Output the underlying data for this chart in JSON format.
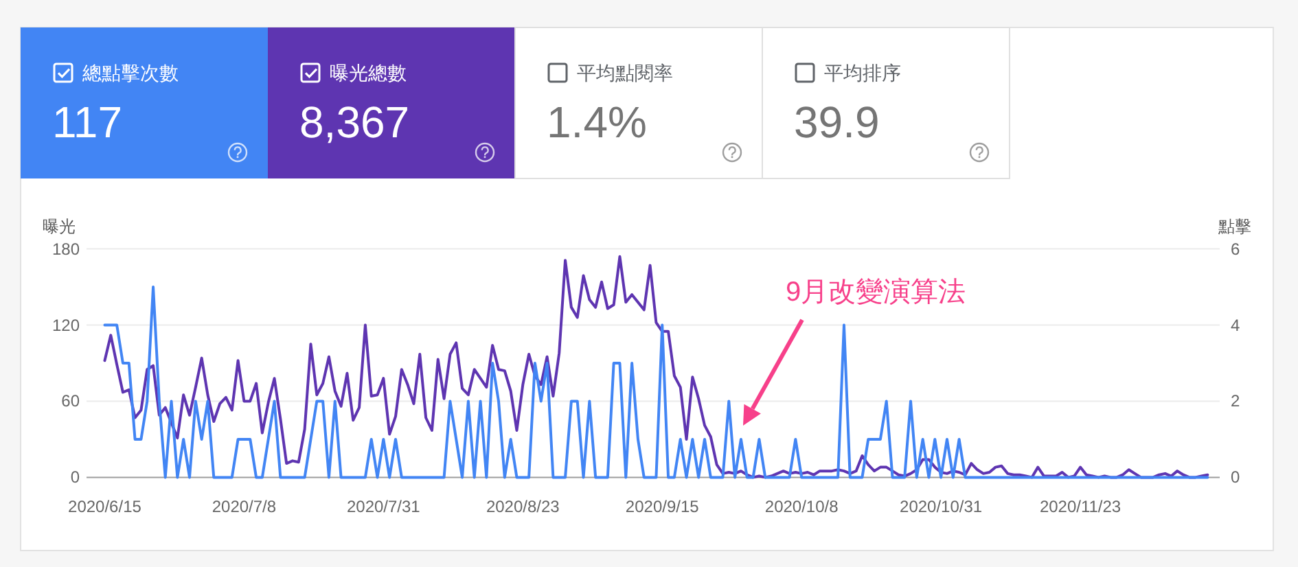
{
  "chart_data": [
    {
      "type": "other",
      "categories": [
        "總點擊次數",
        "曝光總數",
        "平均點閱率",
        "平均排序"
      ],
      "value_labels": [
        "117",
        "8,367",
        "1.4%",
        "39.9"
      ],
      "colors": [
        "#4285f4",
        "#5e35b1",
        null,
        null
      ]
    },
    {
      "type": "line",
      "ylabel": "曝光",
      "y2label": "點擊",
      "x": [
        "2020-06-15",
        "2020-06-16",
        "2020-06-17",
        "2020-06-18",
        "2020-06-19",
        "2020-06-20",
        "2020-06-21",
        "2020-06-22",
        "2020-06-23",
        "2020-06-24",
        "2020-06-25",
        "2020-06-26",
        "2020-06-27",
        "2020-06-28",
        "2020-06-29",
        "2020-06-30",
        "2020-07-01",
        "2020-07-02",
        "2020-07-03",
        "2020-07-04",
        "2020-07-05",
        "2020-07-06",
        "2020-07-07",
        "2020-07-08",
        "2020-07-09",
        "2020-07-10",
        "2020-07-11",
        "2020-07-12",
        "2020-07-13",
        "2020-07-14",
        "2020-07-15",
        "2020-07-16",
        "2020-07-17",
        "2020-07-18",
        "2020-07-19",
        "2020-07-20",
        "2020-07-21",
        "2020-07-22",
        "2020-07-23",
        "2020-07-24",
        "2020-07-25",
        "2020-07-26",
        "2020-07-27",
        "2020-07-28",
        "2020-07-29",
        "2020-07-30",
        "2020-07-31",
        "2020-08-01",
        "2020-08-02",
        "2020-08-03",
        "2020-08-04",
        "2020-08-05",
        "2020-08-06",
        "2020-08-07",
        "2020-08-08",
        "2020-08-09",
        "2020-08-10",
        "2020-08-11",
        "2020-08-12",
        "2020-08-13",
        "2020-08-14",
        "2020-08-15",
        "2020-08-16",
        "2020-08-17",
        "2020-08-18",
        "2020-08-19",
        "2020-08-20",
        "2020-08-21",
        "2020-08-22",
        "2020-08-23",
        "2020-08-24",
        "2020-08-25",
        "2020-08-26",
        "2020-08-27",
        "2020-08-28",
        "2020-08-29",
        "2020-08-30",
        "2020-08-31",
        "2020-09-01",
        "2020-09-02",
        "2020-09-03",
        "2020-09-04",
        "2020-09-05",
        "2020-09-06",
        "2020-09-07",
        "2020-09-08",
        "2020-09-09",
        "2020-09-10",
        "2020-09-11",
        "2020-09-12",
        "2020-09-13",
        "2020-09-14",
        "2020-09-15",
        "2020-09-16",
        "2020-09-17",
        "2020-09-18",
        "2020-09-19",
        "2020-09-20",
        "2020-09-21",
        "2020-09-22",
        "2020-09-23",
        "2020-09-24",
        "2020-09-25",
        "2020-09-26",
        "2020-09-27",
        "2020-09-28",
        "2020-09-29",
        "2020-09-30",
        "2020-10-01",
        "2020-10-02",
        "2020-10-03",
        "2020-10-04",
        "2020-10-05",
        "2020-10-06",
        "2020-10-07",
        "2020-10-08",
        "2020-10-09",
        "2020-10-10",
        "2020-10-11",
        "2020-10-12",
        "2020-10-13",
        "2020-10-14",
        "2020-10-15",
        "2020-10-16",
        "2020-10-17",
        "2020-10-18",
        "2020-10-19",
        "2020-10-20",
        "2020-10-21",
        "2020-10-22",
        "2020-10-23",
        "2020-10-24",
        "2020-10-25",
        "2020-10-26",
        "2020-10-27",
        "2020-10-28",
        "2020-10-29",
        "2020-10-30",
        "2020-10-31",
        "2020-11-01",
        "2020-11-02",
        "2020-11-03",
        "2020-11-04",
        "2020-11-05",
        "2020-11-06",
        "2020-11-07",
        "2020-11-08",
        "2020-11-09",
        "2020-11-10",
        "2020-11-11",
        "2020-11-12",
        "2020-11-13",
        "2020-11-14",
        "2020-11-15",
        "2020-11-16",
        "2020-11-17",
        "2020-11-18",
        "2020-11-19",
        "2020-11-20",
        "2020-11-21",
        "2020-11-22",
        "2020-11-23",
        "2020-11-24",
        "2020-11-25",
        "2020-11-26",
        "2020-11-27",
        "2020-11-28",
        "2020-11-29",
        "2020-11-30",
        "2020-12-01",
        "2020-12-02",
        "2020-12-03",
        "2020-12-04",
        "2020-12-05",
        "2020-12-06",
        "2020-12-07",
        "2020-12-08",
        "2020-12-09",
        "2020-12-10",
        "2020-12-11",
        "2020-12-12",
        "2020-12-13",
        "2020-12-14"
      ],
      "series": [
        {
          "color": "#5e35b1",
          "values": [
            92,
            112,
            89,
            67,
            69,
            47,
            53,
            85,
            88,
            49,
            55,
            43,
            31,
            65,
            49,
            71,
            94,
            65,
            44,
            58,
            63,
            53,
            92,
            60,
            60,
            74,
            35,
            59,
            78,
            46,
            11,
            13,
            12,
            38,
            105,
            65,
            74,
            95,
            68,
            56,
            82,
            45,
            55,
            120,
            64,
            65,
            78,
            34,
            48,
            85,
            73,
            58,
            97,
            47,
            37,
            93,
            62,
            97,
            106,
            70,
            65,
            85,
            78,
            71,
            104,
            85,
            84,
            68,
            37,
            73,
            97,
            80,
            73,
            95,
            64,
            98,
            171,
            134,
            126,
            159,
            140,
            134,
            154,
            133,
            136,
            174,
            138,
            144,
            138,
            132,
            167,
            122,
            115,
            115,
            80,
            71,
            30,
            79,
            62,
            41,
            32,
            10,
            3,
            4,
            3,
            5,
            2,
            0,
            1,
            0,
            1,
            3,
            5,
            3,
            4,
            3,
            4,
            2,
            5,
            5,
            5,
            6,
            5,
            3,
            5,
            17,
            10,
            5,
            8,
            8,
            5,
            2,
            1,
            3,
            6,
            14,
            14,
            8,
            4,
            3,
            5,
            4,
            2,
            11,
            6,
            3,
            4,
            8,
            9,
            3,
            2,
            2,
            1,
            0,
            8,
            1,
            1,
            1,
            4,
            0,
            1,
            8,
            2,
            1,
            0,
            1,
            0,
            0,
            2,
            6,
            3,
            0,
            0,
            0,
            2,
            3,
            1,
            5,
            2,
            0,
            0,
            1,
            2
          ]
        },
        {
          "color": "#4285f4",
          "axis": "y2",
          "values": [
            4,
            4,
            4,
            3,
            3,
            1,
            1,
            2,
            5,
            2,
            0,
            2,
            0,
            1,
            0,
            2,
            1,
            2,
            0,
            0,
            0,
            0,
            1,
            1,
            1,
            0,
            0,
            1,
            2,
            0,
            0,
            0,
            0,
            0,
            1,
            2,
            2,
            0,
            2,
            0,
            0,
            0,
            0,
            0,
            1,
            0,
            1,
            0,
            1,
            0,
            0,
            0,
            0,
            0,
            0,
            0,
            0,
            2,
            1,
            0,
            2,
            0,
            2,
            0,
            3,
            2,
            0,
            1,
            0,
            0,
            0,
            3,
            2,
            3,
            0,
            0,
            0,
            2,
            2,
            0,
            2,
            0,
            0,
            0,
            3,
            3,
            0,
            3,
            1,
            0,
            0,
            0,
            4,
            0,
            0,
            1,
            0,
            1,
            0,
            1,
            0,
            0,
            0,
            2,
            0,
            1,
            0,
            0,
            1,
            0,
            0,
            0,
            0,
            0,
            1,
            0,
            0,
            0,
            0,
            0,
            0,
            0,
            4,
            0,
            0,
            0,
            1,
            1,
            1,
            2,
            0,
            0,
            0,
            2,
            0,
            1,
            0,
            1,
            0,
            1,
            0,
            1,
            0,
            0,
            0,
            0,
            0,
            0,
            0,
            0,
            0,
            0,
            0,
            0,
            0,
            0,
            0,
            0,
            0,
            0,
            0,
            0,
            0,
            0,
            0,
            0,
            0,
            0,
            0,
            0,
            0,
            0,
            0,
            0,
            0,
            0,
            0,
            0,
            0,
            0,
            0,
            0,
            0
          ]
        }
      ],
      "xlim": [
        "2020-06-12",
        "2020-12-16"
      ],
      "xticks": [
        {
          "value": "2020-06-15",
          "label": "2020/6/15"
        },
        {
          "value": "2020-07-08",
          "label": "2020/7/8"
        },
        {
          "value": "2020-07-31",
          "label": "2020/7/31"
        },
        {
          "value": "2020-08-23",
          "label": "2020/8/23"
        },
        {
          "value": "2020-09-15",
          "label": "2020/9/15"
        },
        {
          "value": "2020-10-08",
          "label": "2020/10/8"
        },
        {
          "value": "2020-10-31",
          "label": "2020/10/31"
        },
        {
          "value": "2020-11-23",
          "label": "2020/11/23"
        }
      ],
      "ylim": [
        0,
        180
      ],
      "yticks": [
        0,
        60,
        120,
        180
      ],
      "y2lim": [
        0,
        6
      ],
      "y2ticks": [
        0,
        2,
        4,
        6
      ],
      "grid": "y",
      "line_style": "solid",
      "marker": "none",
      "annotations": [
        "9月改變演算法"
      ]
    }
  ]
}
